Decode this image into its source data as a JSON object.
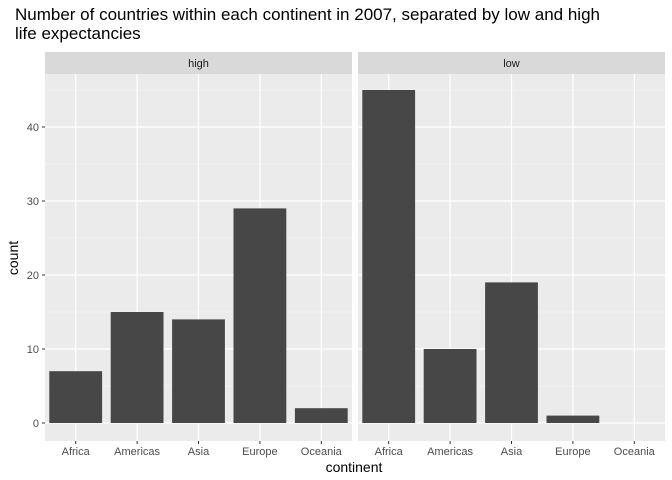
{
  "chart_data": {
    "type": "bar",
    "title_lines": [
      "Number of countries within each continent in 2007, separated by low and high",
      "life expectancies"
    ],
    "xlabel": "continent",
    "ylabel": "count",
    "categories": [
      "Africa",
      "Americas",
      "Asia",
      "Europe",
      "Oceania"
    ],
    "ylim": [
      0,
      47.25
    ],
    "yticks": [
      0,
      10,
      20,
      30,
      40
    ],
    "facets": [
      {
        "label": "high",
        "values": [
          7,
          15,
          14,
          29,
          2
        ]
      },
      {
        "label": "low",
        "values": [
          45,
          10,
          19,
          1,
          0
        ]
      }
    ],
    "grid": true,
    "bar_color": "#474747",
    "panel_background": "#ebebeb",
    "strip_background": "#d9d9d9"
  }
}
